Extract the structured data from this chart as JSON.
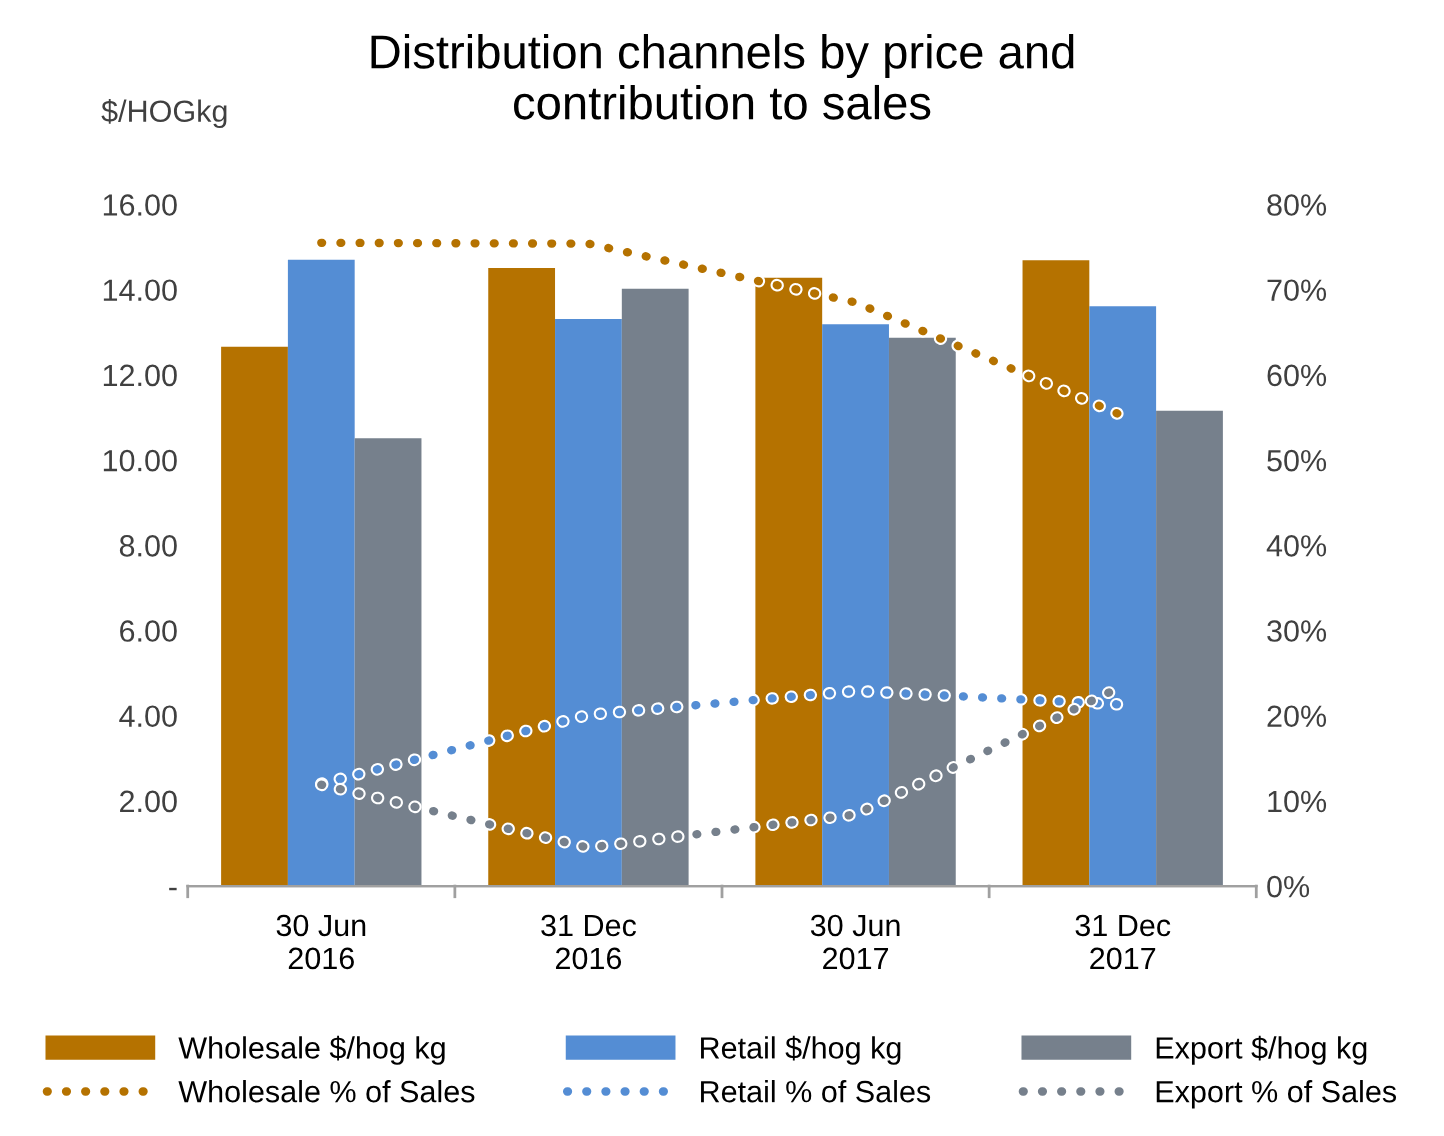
{
  "chart_data": {
    "type": "bar",
    "title": "Distribution channels by price and\ncontribution to sales",
    "ylabel": "$/HOGkg",
    "categories": [
      "30 Jun\n2016",
      "31 Dec\n2016",
      "30 Jun\n2017",
      "31 Dec\n2017"
    ],
    "series": [
      {
        "name": "Wholesale $/hog kg",
        "color": "#b57200",
        "values": [
          12.66,
          14.51,
          14.28,
          14.69
        ]
      },
      {
        "name": "Retail $/hog kg",
        "color": "#548dd4",
        "values": [
          14.7,
          13.31,
          13.19,
          13.61
        ]
      },
      {
        "name": "Export $/hog kg",
        "color": "#76808c",
        "values": [
          10.51,
          14.02,
          12.87,
          11.16
        ]
      },
      {
        "name": "Wholesale % of Sales",
        "type": "line",
        "axis": "y2",
        "color": "#b57200",
        "line_style": "dotted",
        "values": [
          75.5,
          75.4,
          68.5,
          55.2
        ]
      },
      {
        "name": "Retail % of Sales",
        "type": "line",
        "axis": "y2",
        "color": "#548dd4",
        "line_style": "dotted",
        "values": [
          12,
          20.1,
          22.9,
          21.3
        ]
      },
      {
        "name": "Export % of Sales",
        "type": "line",
        "axis": "y2",
        "color": "#76808c",
        "line_style": "dotted",
        "values": [
          11.9,
          4.5,
          8.4,
          23.5
        ]
      }
    ],
    "ylim": [
      0,
      16
    ],
    "yticks": [
      {
        "value": 0,
        "label": "-"
      },
      {
        "value": 2,
        "label": "2.00"
      },
      {
        "value": 4,
        "label": "4.00"
      },
      {
        "value": 6,
        "label": "6.00"
      },
      {
        "value": 8,
        "label": "8.00"
      },
      {
        "value": 10,
        "label": "10.00"
      },
      {
        "value": 12,
        "label": "12.00"
      },
      {
        "value": 14,
        "label": "14.00"
      },
      {
        "value": 16,
        "label": "16.00"
      }
    ],
    "y2lim": [
      0,
      80
    ],
    "y2ticks": [
      {
        "value": 0,
        "label": "0%"
      },
      {
        "value": 10,
        "label": "10%"
      },
      {
        "value": 20,
        "label": "20%"
      },
      {
        "value": 30,
        "label": "30%"
      },
      {
        "value": 40,
        "label": "40%"
      },
      {
        "value": 50,
        "label": "50%"
      },
      {
        "value": 60,
        "label": "60%"
      },
      {
        "value": 70,
        "label": "70%"
      },
      {
        "value": 80,
        "label": "80%"
      }
    ],
    "legend": "bottom",
    "grid": false
  }
}
